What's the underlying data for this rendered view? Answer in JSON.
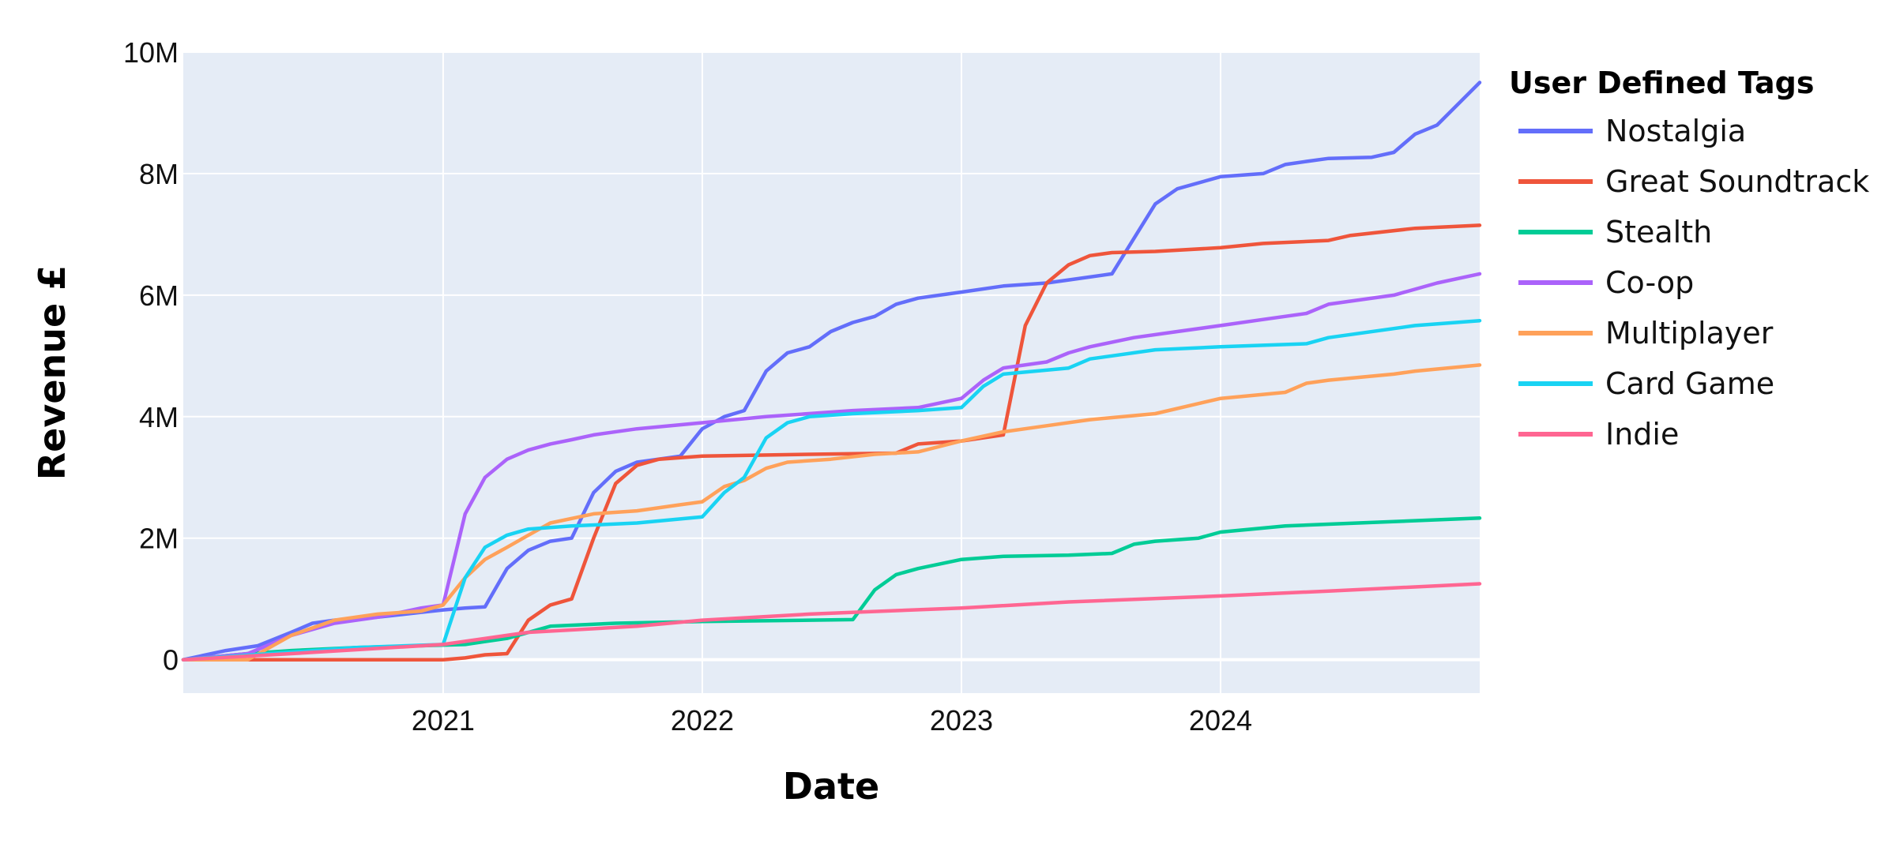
{
  "chart_data": {
    "type": "line",
    "title": "",
    "xlabel": "Date",
    "ylabel": "Revenue £",
    "x_ticks": [
      "2021",
      "2022",
      "2023",
      "2024"
    ],
    "y_ticks": [
      "0",
      "2M",
      "4M",
      "6M",
      "8M",
      "10M"
    ],
    "xlim": [
      "2020-01-01",
      "2024-12-31"
    ],
    "ylim": [
      -550000,
      10000000
    ],
    "grid": true,
    "legend": {
      "title": "User Defined Tags",
      "position": "right"
    },
    "series": [
      {
        "name": "Nostalgia",
        "color": "#636efa",
        "points": [
          [
            "2020-01-01",
            0
          ],
          [
            "2020-03-01",
            150000
          ],
          [
            "2020-04-15",
            230000
          ],
          [
            "2020-06-01",
            450000
          ],
          [
            "2020-07-01",
            600000
          ],
          [
            "2020-08-01",
            650000
          ],
          [
            "2020-10-01",
            700000
          ],
          [
            "2020-12-01",
            780000
          ],
          [
            "2021-01-01",
            820000
          ],
          [
            "2021-02-01",
            850000
          ],
          [
            "2021-03-01",
            870000
          ],
          [
            "2021-04-01",
            1500000
          ],
          [
            "2021-05-01",
            1800000
          ],
          [
            "2021-06-01",
            1950000
          ],
          [
            "2021-07-01",
            2000000
          ],
          [
            "2021-08-01",
            2750000
          ],
          [
            "2021-09-01",
            3100000
          ],
          [
            "2021-10-01",
            3250000
          ],
          [
            "2021-12-01",
            3350000
          ],
          [
            "2022-01-01",
            3800000
          ],
          [
            "2022-02-01",
            4000000
          ],
          [
            "2022-03-01",
            4100000
          ],
          [
            "2022-04-01",
            4750000
          ],
          [
            "2022-05-01",
            5050000
          ],
          [
            "2022-06-01",
            5150000
          ],
          [
            "2022-07-01",
            5400000
          ],
          [
            "2022-08-01",
            5550000
          ],
          [
            "2022-09-01",
            5650000
          ],
          [
            "2022-10-01",
            5850000
          ],
          [
            "2022-11-01",
            5950000
          ],
          [
            "2023-01-01",
            6050000
          ],
          [
            "2023-03-01",
            6150000
          ],
          [
            "2023-05-01",
            6200000
          ],
          [
            "2023-06-01",
            6250000
          ],
          [
            "2023-08-01",
            6350000
          ],
          [
            "2023-10-01",
            7500000
          ],
          [
            "2023-11-01",
            7750000
          ],
          [
            "2024-01-01",
            7950000
          ],
          [
            "2024-03-01",
            8000000
          ],
          [
            "2024-04-01",
            8150000
          ],
          [
            "2024-05-01",
            8200000
          ],
          [
            "2024-06-01",
            8250000
          ],
          [
            "2024-08-01",
            8270000
          ],
          [
            "2024-09-01",
            8350000
          ],
          [
            "2024-10-01",
            8650000
          ],
          [
            "2024-11-01",
            8800000
          ],
          [
            "2024-12-31",
            9500000
          ]
        ]
      },
      {
        "name": "Great Soundtrack",
        "color": "#ef553b",
        "points": [
          [
            "2020-01-01",
            0
          ],
          [
            "2021-01-01",
            0
          ],
          [
            "2021-02-01",
            30000
          ],
          [
            "2021-03-01",
            80000
          ],
          [
            "2021-04-01",
            100000
          ],
          [
            "2021-05-01",
            650000
          ],
          [
            "2021-06-01",
            900000
          ],
          [
            "2021-07-01",
            1000000
          ],
          [
            "2021-08-01",
            2000000
          ],
          [
            "2021-09-01",
            2900000
          ],
          [
            "2021-10-01",
            3200000
          ],
          [
            "2021-11-01",
            3300000
          ],
          [
            "2022-01-01",
            3350000
          ],
          [
            "2022-06-01",
            3380000
          ],
          [
            "2022-10-01",
            3400000
          ],
          [
            "2022-11-01",
            3550000
          ],
          [
            "2023-01-01",
            3600000
          ],
          [
            "2023-03-01",
            3700000
          ],
          [
            "2023-04-01",
            5500000
          ],
          [
            "2023-05-01",
            6200000
          ],
          [
            "2023-06-01",
            6500000
          ],
          [
            "2023-07-01",
            6650000
          ],
          [
            "2023-08-01",
            6700000
          ],
          [
            "2023-10-01",
            6720000
          ],
          [
            "2024-01-01",
            6780000
          ],
          [
            "2024-03-01",
            6850000
          ],
          [
            "2024-06-01",
            6900000
          ],
          [
            "2024-07-01",
            6980000
          ],
          [
            "2024-10-01",
            7100000
          ],
          [
            "2024-12-31",
            7150000
          ]
        ]
      },
      {
        "name": "Stealth",
        "color": "#00cc96",
        "points": [
          [
            "2020-01-01",
            0
          ],
          [
            "2020-04-01",
            100000
          ],
          [
            "2020-06-01",
            150000
          ],
          [
            "2020-09-01",
            200000
          ],
          [
            "2020-12-01",
            230000
          ],
          [
            "2021-02-01",
            250000
          ],
          [
            "2021-03-01",
            300000
          ],
          [
            "2021-04-01",
            350000
          ],
          [
            "2021-06-01",
            550000
          ],
          [
            "2021-09-01",
            600000
          ],
          [
            "2022-01-01",
            630000
          ],
          [
            "2022-06-01",
            650000
          ],
          [
            "2022-08-01",
            660000
          ],
          [
            "2022-09-01",
            1150000
          ],
          [
            "2022-10-01",
            1400000
          ],
          [
            "2022-11-01",
            1500000
          ],
          [
            "2023-01-01",
            1650000
          ],
          [
            "2023-03-01",
            1700000
          ],
          [
            "2023-06-01",
            1720000
          ],
          [
            "2023-08-01",
            1750000
          ],
          [
            "2023-09-01",
            1900000
          ],
          [
            "2023-10-01",
            1950000
          ],
          [
            "2023-12-01",
            2000000
          ],
          [
            "2024-01-01",
            2100000
          ],
          [
            "2024-04-01",
            2200000
          ],
          [
            "2024-06-01",
            2230000
          ],
          [
            "2024-12-31",
            2330000
          ]
        ]
      },
      {
        "name": "Co-op",
        "color": "#ab63fa",
        "points": [
          [
            "2020-01-01",
            0
          ],
          [
            "2020-04-01",
            100000
          ],
          [
            "2020-06-01",
            400000
          ],
          [
            "2020-08-01",
            600000
          ],
          [
            "2020-10-01",
            700000
          ],
          [
            "2020-12-01",
            850000
          ],
          [
            "2021-01-01",
            900000
          ],
          [
            "2021-02-01",
            2400000
          ],
          [
            "2021-03-01",
            3000000
          ],
          [
            "2021-04-01",
            3300000
          ],
          [
            "2021-05-01",
            3450000
          ],
          [
            "2021-06-01",
            3550000
          ],
          [
            "2021-07-01",
            3620000
          ],
          [
            "2021-08-01",
            3700000
          ],
          [
            "2021-10-01",
            3800000
          ],
          [
            "2022-01-01",
            3900000
          ],
          [
            "2022-04-01",
            4000000
          ],
          [
            "2022-08-01",
            4100000
          ],
          [
            "2022-11-01",
            4150000
          ],
          [
            "2023-01-01",
            4300000
          ],
          [
            "2023-02-01",
            4600000
          ],
          [
            "2023-03-01",
            4800000
          ],
          [
            "2023-05-01",
            4900000
          ],
          [
            "2023-06-01",
            5050000
          ],
          [
            "2023-07-01",
            5150000
          ],
          [
            "2023-09-01",
            5300000
          ],
          [
            "2023-11-01",
            5400000
          ],
          [
            "2024-01-01",
            5500000
          ],
          [
            "2024-03-01",
            5600000
          ],
          [
            "2024-05-01",
            5700000
          ],
          [
            "2024-06-01",
            5850000
          ],
          [
            "2024-07-01",
            5900000
          ],
          [
            "2024-09-01",
            6000000
          ],
          [
            "2024-11-01",
            6200000
          ],
          [
            "2024-12-31",
            6350000
          ]
        ]
      },
      {
        "name": "Multiplayer",
        "color": "#ffa15a",
        "points": [
          [
            "2020-01-01",
            0
          ],
          [
            "2020-04-01",
            0
          ],
          [
            "2020-06-01",
            400000
          ],
          [
            "2020-08-01",
            650000
          ],
          [
            "2020-10-01",
            750000
          ],
          [
            "2020-12-01",
            800000
          ],
          [
            "2021-01-01",
            900000
          ],
          [
            "2021-02-01",
            1350000
          ],
          [
            "2021-03-01",
            1650000
          ],
          [
            "2021-04-01",
            1850000
          ],
          [
            "2021-05-01",
            2050000
          ],
          [
            "2021-06-01",
            2250000
          ],
          [
            "2021-08-01",
            2400000
          ],
          [
            "2021-10-01",
            2450000
          ],
          [
            "2021-12-01",
            2550000
          ],
          [
            "2022-01-01",
            2600000
          ],
          [
            "2022-02-01",
            2850000
          ],
          [
            "2022-03-01",
            2950000
          ],
          [
            "2022-04-01",
            3150000
          ],
          [
            "2022-05-01",
            3250000
          ],
          [
            "2022-07-01",
            3300000
          ],
          [
            "2022-09-01",
            3380000
          ],
          [
            "2022-11-01",
            3420000
          ],
          [
            "2023-01-01",
            3600000
          ],
          [
            "2023-03-01",
            3750000
          ],
          [
            "2023-05-01",
            3850000
          ],
          [
            "2023-07-01",
            3950000
          ],
          [
            "2023-10-01",
            4050000
          ],
          [
            "2024-01-01",
            4300000
          ],
          [
            "2024-04-01",
            4400000
          ],
          [
            "2024-05-01",
            4550000
          ],
          [
            "2024-06-01",
            4600000
          ],
          [
            "2024-09-01",
            4700000
          ],
          [
            "2024-10-01",
            4750000
          ],
          [
            "2024-12-31",
            4850000
          ]
        ]
      },
      {
        "name": "Card Game",
        "color": "#19d3f3",
        "points": [
          [
            "2020-01-01",
            0
          ],
          [
            "2020-05-01",
            100000
          ],
          [
            "2020-09-01",
            200000
          ],
          [
            "2021-01-01",
            250000
          ],
          [
            "2021-02-01",
            1350000
          ],
          [
            "2021-03-01",
            1850000
          ],
          [
            "2021-04-01",
            2050000
          ],
          [
            "2021-05-01",
            2150000
          ],
          [
            "2021-07-01",
            2200000
          ],
          [
            "2021-10-01",
            2250000
          ],
          [
            "2022-01-01",
            2350000
          ],
          [
            "2022-02-01",
            2750000
          ],
          [
            "2022-03-01",
            3000000
          ],
          [
            "2022-04-01",
            3650000
          ],
          [
            "2022-05-01",
            3900000
          ],
          [
            "2022-06-01",
            4000000
          ],
          [
            "2022-08-01",
            4050000
          ],
          [
            "2022-11-01",
            4100000
          ],
          [
            "2023-01-01",
            4150000
          ],
          [
            "2023-02-01",
            4500000
          ],
          [
            "2023-03-01",
            4700000
          ],
          [
            "2023-06-01",
            4800000
          ],
          [
            "2023-07-01",
            4950000
          ],
          [
            "2023-08-01",
            5000000
          ],
          [
            "2023-10-01",
            5100000
          ],
          [
            "2024-01-01",
            5150000
          ],
          [
            "2024-05-01",
            5200000
          ],
          [
            "2024-06-01",
            5300000
          ],
          [
            "2024-10-01",
            5500000
          ],
          [
            "2024-12-31",
            5580000
          ]
        ]
      },
      {
        "name": "Indie",
        "color": "#ff6692",
        "points": [
          [
            "2020-01-01",
            0
          ],
          [
            "2020-06-01",
            100000
          ],
          [
            "2021-01-01",
            250000
          ],
          [
            "2021-05-01",
            450000
          ],
          [
            "2021-10-01",
            550000
          ],
          [
            "2022-01-01",
            650000
          ],
          [
            "2022-06-01",
            750000
          ],
          [
            "2023-01-01",
            850000
          ],
          [
            "2023-06-01",
            950000
          ],
          [
            "2024-01-01",
            1050000
          ],
          [
            "2024-06-01",
            1130000
          ],
          [
            "2024-12-31",
            1250000
          ]
        ]
      }
    ]
  }
}
